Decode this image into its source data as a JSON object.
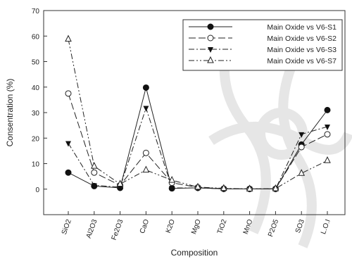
{
  "chart_data": {
    "type": "line",
    "xlabel": "Composition",
    "ylabel": "Consentration (%)",
    "ylim": [
      -10,
      70
    ],
    "yticks": [
      0,
      10,
      20,
      30,
      40,
      50,
      60,
      70
    ],
    "grid": false,
    "legend_position": "top-right",
    "categories": [
      "SiO2",
      "Al2O3",
      "Fe2O3",
      "CaO",
      "K2O",
      "MgO",
      "TiO2",
      "MnO",
      "P2O5",
      "SO3",
      "L.O.I"
    ],
    "series": [
      {
        "name": "Main Oxide vs V6-S1",
        "marker": "circle-filled",
        "dash": "solid",
        "values": [
          6.5,
          1.2,
          0.5,
          39.8,
          0.3,
          0.5,
          0.1,
          0.1,
          0.1,
          17.5,
          31
        ]
      },
      {
        "name": "Main Oxide vs V6-S2",
        "marker": "circle-open",
        "dash": "long-dash",
        "values": [
          37.5,
          6.5,
          1.5,
          14.2,
          2.5,
          0.7,
          0.2,
          0.1,
          0.1,
          16.5,
          21.5
        ]
      },
      {
        "name": "Main Oxide vs V6-S3",
        "marker": "triangle-down-filled",
        "dash": "dash-dot",
        "values": [
          18,
          1.5,
          0.8,
          31.8,
          0.5,
          0.5,
          0.1,
          0.1,
          0.1,
          21.5,
          24.5
        ]
      },
      {
        "name": "Main Oxide vs V6-S7",
        "marker": "triangle-up-open",
        "dash": "dash-dot-dot",
        "values": [
          58.8,
          9.0,
          2.0,
          7.5,
          3.5,
          0.8,
          0.3,
          0.1,
          0.2,
          6.2,
          11.2
        ]
      }
    ]
  }
}
